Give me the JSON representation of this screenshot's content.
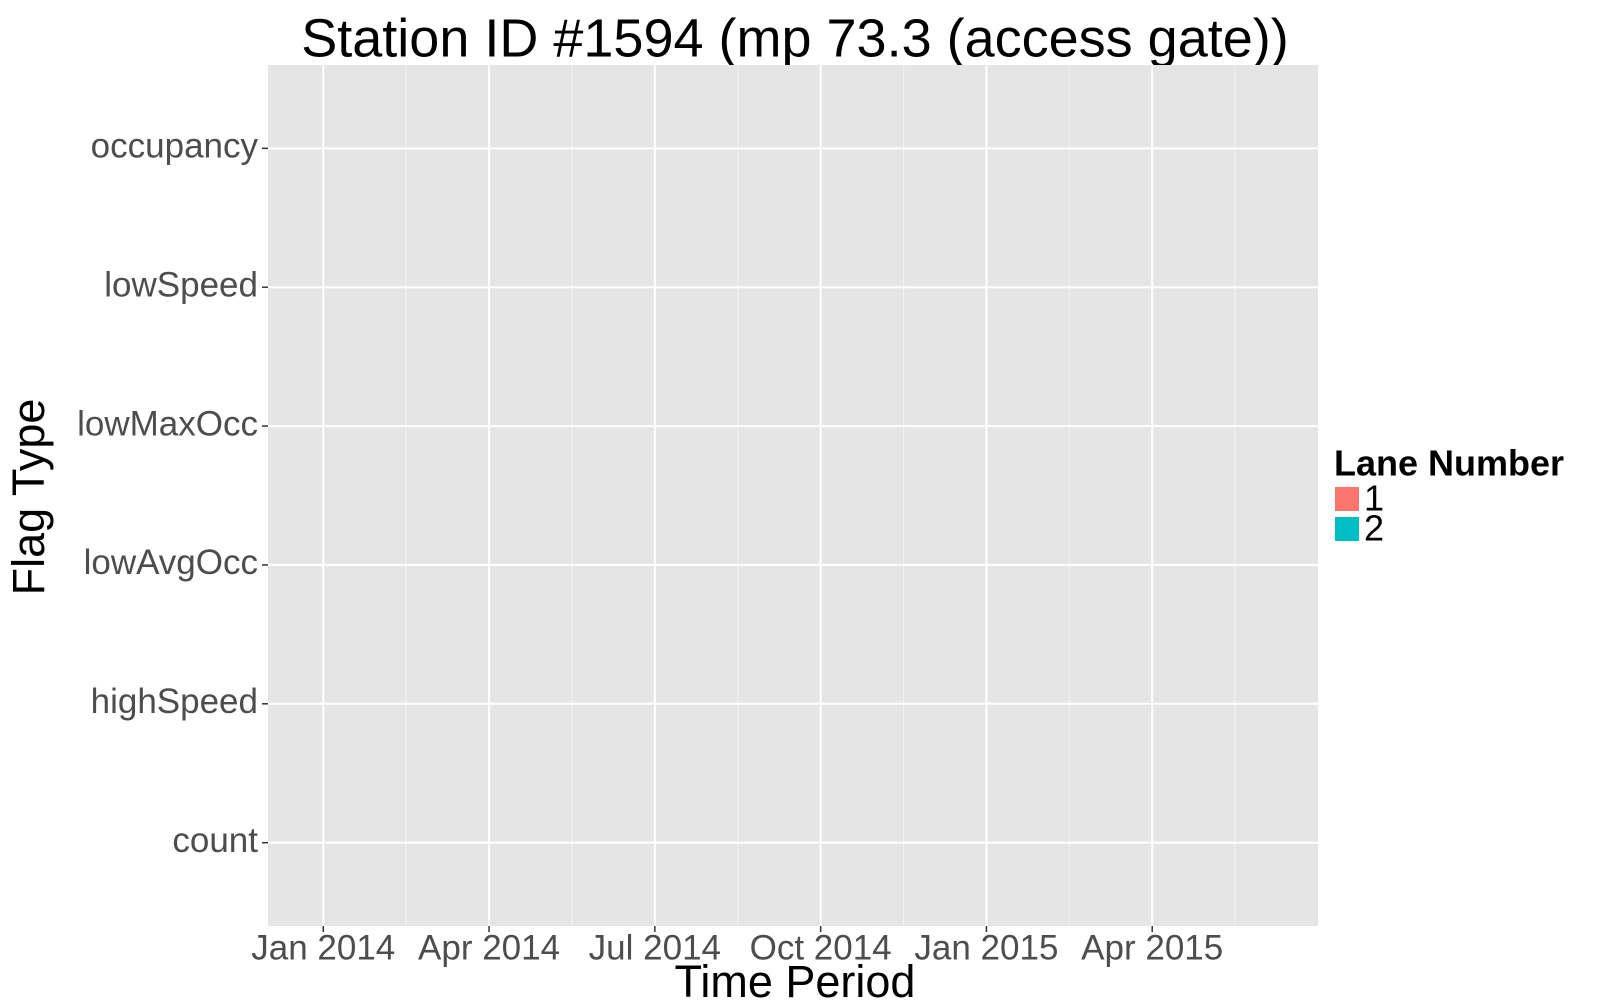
{
  "chart_data": {
    "type": "tile",
    "title": "Station ID #1594 (mp 73.3 (access gate))",
    "x_label": "Time Period",
    "y_label": "Flag Type",
    "categories": [
      "count",
      "highSpeed",
      "lowAvgOcc",
      "lowMaxOcc",
      "lowSpeed",
      "occupancy"
    ],
    "xlim": [
      "2013-12",
      "2015-07"
    ],
    "xticks": [
      {
        "value": "2014-01",
        "label": "Jan 2014"
      },
      {
        "value": "2014-04",
        "label": "Apr 2014"
      },
      {
        "value": "2014-07",
        "label": "Jul 2014"
      },
      {
        "value": "2014-10",
        "label": "Oct 2014"
      },
      {
        "value": "2015-01",
        "label": "Jan 2015"
      },
      {
        "value": "2015-04",
        "label": "Apr 2015"
      }
    ],
    "grid": true,
    "legend_title": "Lane Number",
    "legend_position": "right",
    "series": [
      {
        "name": "1",
        "color": "#F8766D"
      },
      {
        "name": "2",
        "color": "#00BFC4"
      }
    ]
  }
}
